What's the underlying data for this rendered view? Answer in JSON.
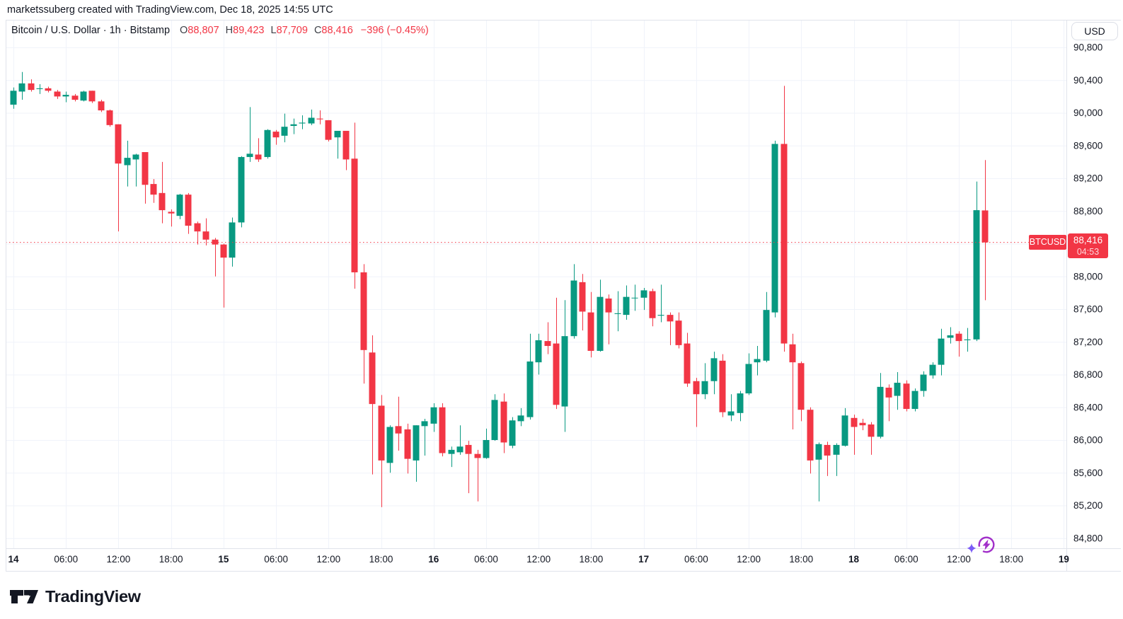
{
  "header": {
    "text": "marketssuberg created with TradingView.com, Dec 18, 2025 14:55 UTC"
  },
  "legend": {
    "title": "Bitcoin / U.S. Dollar · 1h · Bitstamp",
    "ohlc": [
      {
        "label": "O",
        "value": "88,807"
      },
      {
        "label": "H",
        "value": "89,423"
      },
      {
        "label": "L",
        "value": "87,709"
      },
      {
        "label": "C",
        "value": "88,416"
      }
    ],
    "change": "−396 (−0.45%)"
  },
  "price_axis": {
    "currency_button": "USD",
    "labels": [
      {
        "v": 90800,
        "t": "90,800"
      },
      {
        "v": 90400,
        "t": "90,400"
      },
      {
        "v": 90000,
        "t": "90,000"
      },
      {
        "v": 89600,
        "t": "89,600"
      },
      {
        "v": 89200,
        "t": "89,200"
      },
      {
        "v": 88800,
        "t": "88,800"
      },
      {
        "v": 88000,
        "t": "88,000"
      },
      {
        "v": 87600,
        "t": "87,600"
      },
      {
        "v": 87200,
        "t": "87,200"
      },
      {
        "v": 86800,
        "t": "86,800"
      },
      {
        "v": 86400,
        "t": "86,400"
      },
      {
        "v": 86000,
        "t": "86,000"
      },
      {
        "v": 85600,
        "t": "85,600"
      },
      {
        "v": 85200,
        "t": "85,200"
      },
      {
        "v": 84800,
        "t": "84,800"
      }
    ]
  },
  "price_tag": {
    "symbol": "BTCUSD",
    "price": "88,416",
    "countdown": "04:53"
  },
  "footer": {
    "logo_text": "TradingView"
  },
  "colors": {
    "up": "#089981",
    "down": "#F23645",
    "grid": "#F0F3FA",
    "frame": "#E0E3EB",
    "text": "#131722",
    "dotted": "#F23645",
    "replay_purple": "#A12FC9",
    "sparkle_violet": "#7B5CF6"
  },
  "chart_data": {
    "type": "candlestick",
    "title": "Bitcoin / U.S. Dollar",
    "interval": "1h",
    "exchange": "Bitstamp",
    "last_price": 88416,
    "last_candle": {
      "open": 88807,
      "high": 89423,
      "low": 87709,
      "close": 88416,
      "change": -396,
      "change_pct": -0.45
    },
    "y_axis": {
      "min": 84800,
      "max": 90800,
      "step": 400,
      "side": "right",
      "currency": "USD"
    },
    "x_axis_start": "Dec 14, 00:00 UTC",
    "grid": true,
    "time_ticks": [
      {
        "i": 0,
        "label": "14",
        "day": true
      },
      {
        "i": 6,
        "label": "06:00"
      },
      {
        "i": 12,
        "label": "12:00"
      },
      {
        "i": 18,
        "label": "18:00"
      },
      {
        "i": 24,
        "label": "15",
        "day": true
      },
      {
        "i": 30,
        "label": "06:00"
      },
      {
        "i": 36,
        "label": "12:00"
      },
      {
        "i": 42,
        "label": "18:00"
      },
      {
        "i": 48,
        "label": "16",
        "day": true
      },
      {
        "i": 54,
        "label": "06:00"
      },
      {
        "i": 60,
        "label": "12:00"
      },
      {
        "i": 66,
        "label": "18:00"
      },
      {
        "i": 72,
        "label": "17",
        "day": true
      },
      {
        "i": 78,
        "label": "06:00"
      },
      {
        "i": 84,
        "label": "12:00"
      },
      {
        "i": 90,
        "label": "18:00"
      },
      {
        "i": 96,
        "label": "18",
        "day": true
      },
      {
        "i": 102,
        "label": "06:00"
      },
      {
        "i": 108,
        "label": "12:00"
      },
      {
        "i": 114,
        "label": "18:00"
      },
      {
        "i": 120,
        "label": "19",
        "day": true
      }
    ],
    "candles": [
      [
        90100,
        90310,
        90050,
        90270
      ],
      [
        90260,
        90500,
        90160,
        90360
      ],
      [
        90360,
        90410,
        90260,
        90280
      ],
      [
        90290,
        90350,
        90230,
        90300
      ],
      [
        90300,
        90320,
        90250,
        90270
      ],
      [
        90260,
        90280,
        90170,
        90200
      ],
      [
        90200,
        90260,
        90130,
        90220
      ],
      [
        90210,
        90230,
        90140,
        90160
      ],
      [
        90150,
        90270,
        90140,
        90260
      ],
      [
        90270,
        90270,
        90120,
        90140
      ],
      [
        90140,
        90160,
        90010,
        90030
      ],
      [
        90030,
        90040,
        89830,
        89850
      ],
      [
        89860,
        89860,
        88550,
        89380
      ],
      [
        89360,
        89660,
        89100,
        89450
      ],
      [
        89430,
        89500,
        89100,
        89490
      ],
      [
        89520,
        89520,
        88890,
        89120
      ],
      [
        89130,
        89190,
        88900,
        89000
      ],
      [
        89020,
        89400,
        88650,
        88810
      ],
      [
        88790,
        88820,
        88610,
        88770
      ],
      [
        88740,
        89010,
        88700,
        89000
      ],
      [
        89000,
        89020,
        88520,
        88620
      ],
      [
        88650,
        88670,
        88390,
        88550
      ],
      [
        88550,
        88710,
        88380,
        88450
      ],
      [
        88450,
        88470,
        88000,
        88390
      ],
      [
        88390,
        88400,
        87620,
        88230
      ],
      [
        88230,
        88720,
        88120,
        88660
      ],
      [
        88660,
        89470,
        88600,
        89460
      ],
      [
        89460,
        90070,
        89400,
        89500
      ],
      [
        89490,
        89690,
        89400,
        89430
      ],
      [
        89460,
        89800,
        89440,
        89790
      ],
      [
        89770,
        89790,
        89610,
        89700
      ],
      [
        89720,
        89990,
        89640,
        89830
      ],
      [
        89840,
        89930,
        89740,
        89860
      ],
      [
        89870,
        89970,
        89800,
        89880
      ],
      [
        89870,
        90040,
        89850,
        89940
      ],
      [
        89930,
        90030,
        89860,
        89920
      ],
      [
        89910,
        89910,
        89650,
        89670
      ],
      [
        89700,
        89780,
        89440,
        89780
      ],
      [
        89780,
        89780,
        89300,
        89430
      ],
      [
        89440,
        89880,
        87850,
        88050
      ],
      [
        88050,
        88150,
        86690,
        87100
      ],
      [
        87070,
        87280,
        85580,
        86440
      ],
      [
        86420,
        86550,
        85180,
        85750
      ],
      [
        85720,
        86180,
        85600,
        86160
      ],
      [
        86170,
        86530,
        85870,
        86080
      ],
      [
        86130,
        86200,
        85590,
        85770
      ],
      [
        85750,
        86180,
        85490,
        86180
      ],
      [
        86170,
        86260,
        85810,
        86230
      ],
      [
        86200,
        86450,
        86100,
        86400
      ],
      [
        86400,
        86450,
        85800,
        85840
      ],
      [
        85830,
        85920,
        85670,
        85880
      ],
      [
        85850,
        86180,
        85820,
        85920
      ],
      [
        85940,
        85990,
        85350,
        85830
      ],
      [
        85830,
        85880,
        85250,
        85780
      ],
      [
        85780,
        86140,
        85770,
        86000
      ],
      [
        86000,
        86560,
        85990,
        86490
      ],
      [
        86470,
        86570,
        85840,
        85970
      ],
      [
        85930,
        86280,
        85900,
        86240
      ],
      [
        86230,
        86390,
        86170,
        86300
      ],
      [
        86280,
        87300,
        86250,
        86960
      ],
      [
        86950,
        87300,
        86800,
        87220
      ],
      [
        87210,
        87440,
        87050,
        87150
      ],
      [
        87180,
        87740,
        86380,
        86430
      ],
      [
        86410,
        87710,
        86100,
        87270
      ],
      [
        87270,
        88150,
        87240,
        87950
      ],
      [
        87930,
        88030,
        87340,
        87570
      ],
      [
        87560,
        87810,
        87010,
        87090
      ],
      [
        87090,
        87960,
        87080,
        87750
      ],
      [
        87730,
        87780,
        87170,
        87560
      ],
      [
        87540,
        87820,
        87330,
        87550
      ],
      [
        87530,
        87890,
        87470,
        87750
      ],
      [
        87740,
        87900,
        87580,
        87740
      ],
      [
        87740,
        87860,
        87590,
        87830
      ],
      [
        87820,
        87850,
        87390,
        87490
      ],
      [
        87520,
        87900,
        87440,
        87530
      ],
      [
        87530,
        87560,
        87160,
        87450
      ],
      [
        87460,
        87560,
        87120,
        87160
      ],
      [
        87180,
        87310,
        86650,
        86690
      ],
      [
        86720,
        86760,
        86160,
        86560
      ],
      [
        86560,
        86940,
        86500,
        86720
      ],
      [
        86720,
        87080,
        86560,
        87000
      ],
      [
        86970,
        87050,
        86280,
        86340
      ],
      [
        86300,
        86560,
        86230,
        86350
      ],
      [
        86330,
        86600,
        86230,
        86570
      ],
      [
        86570,
        87060,
        86550,
        86930
      ],
      [
        86950,
        87150,
        86790,
        86990
      ],
      [
        86970,
        87810,
        86950,
        87590
      ],
      [
        87560,
        89660,
        87500,
        89620
      ],
      [
        89620,
        90330,
        87080,
        87180
      ],
      [
        87170,
        87300,
        86130,
        86950
      ],
      [
        86940,
        86960,
        86230,
        86370
      ],
      [
        86370,
        86400,
        85590,
        85750
      ],
      [
        85760,
        85970,
        85250,
        85950
      ],
      [
        85940,
        85980,
        85560,
        85810
      ],
      [
        85820,
        85960,
        85560,
        85940
      ],
      [
        85930,
        86390,
        85920,
        86300
      ],
      [
        86270,
        86310,
        85820,
        86160
      ],
      [
        86210,
        86260,
        86120,
        86180
      ],
      [
        86190,
        86220,
        85820,
        86040
      ],
      [
        86040,
        86820,
        86020,
        86650
      ],
      [
        86640,
        86680,
        86230,
        86520
      ],
      [
        86540,
        86830,
        86370,
        86700
      ],
      [
        86690,
        86730,
        86350,
        86380
      ],
      [
        86380,
        86630,
        86350,
        86600
      ],
      [
        86600,
        86840,
        86530,
        86800
      ],
      [
        86790,
        86950,
        86750,
        86920
      ],
      [
        86920,
        87360,
        86790,
        87240
      ],
      [
        87250,
        87380,
        87180,
        87280
      ],
      [
        87300,
        87330,
        87020,
        87210
      ],
      [
        87220,
        87370,
        87080,
        87230
      ],
      [
        87230,
        89160,
        87210,
        88810
      ],
      [
        88807,
        89423,
        87709,
        88416
      ]
    ]
  }
}
